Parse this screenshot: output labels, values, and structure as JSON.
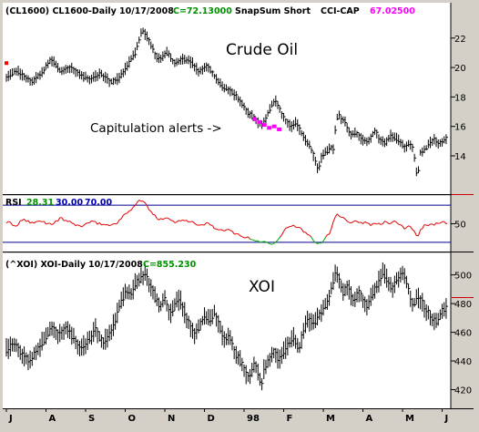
{
  "chart_data": [
    {
      "type": "bar",
      "header": {
        "symbol": "(CL1600) CL1600-Daily",
        "date": "10/17/2008",
        "close": "C=72.13000",
        "study": "SnapSum Short",
        "cci_label": "CCI-CAP",
        "cci_value": "67.02500"
      },
      "title": "Crude Oil",
      "annotation": "Capitulation alerts ->",
      "ylim": [
        11.4,
        24.4
      ],
      "yticks": [
        14,
        16,
        18,
        20,
        22
      ],
      "close_path": [
        [
          0,
          19.3
        ],
        [
          8,
          19.8
        ],
        [
          14,
          19.4
        ],
        [
          20,
          19.0
        ],
        [
          28,
          19.6
        ],
        [
          36,
          20.6
        ],
        [
          44,
          19.7
        ],
        [
          52,
          20.0
        ],
        [
          60,
          19.4
        ],
        [
          68,
          19.2
        ],
        [
          76,
          19.6
        ],
        [
          84,
          19.0
        ],
        [
          90,
          19.2
        ],
        [
          96,
          19.9
        ],
        [
          104,
          21.0
        ],
        [
          110,
          22.6
        ],
        [
          116,
          21.7
        ],
        [
          122,
          20.5
        ],
        [
          130,
          21.0
        ],
        [
          136,
          20.2
        ],
        [
          142,
          20.6
        ],
        [
          150,
          20.3
        ],
        [
          156,
          19.7
        ],
        [
          162,
          20.1
        ],
        [
          168,
          19.4
        ],
        [
          174,
          18.7
        ],
        [
          180,
          18.5
        ],
        [
          186,
          18.0
        ],
        [
          190,
          17.5
        ],
        [
          194,
          17.0
        ],
        [
          198,
          16.7
        ],
        [
          202,
          16.4
        ],
        [
          206,
          16.1
        ],
        [
          210,
          16.6
        ],
        [
          214,
          17.4
        ],
        [
          218,
          17.8
        ],
        [
          222,
          16.9
        ],
        [
          226,
          16.3
        ],
        [
          230,
          16.0
        ],
        [
          234,
          16.3
        ],
        [
          238,
          15.6
        ],
        [
          242,
          15.0
        ],
        [
          246,
          14.5
        ],
        [
          250,
          13.6
        ],
        [
          252,
          12.8
        ],
        [
          254,
          13.9
        ],
        [
          258,
          14.2
        ],
        [
          262,
          14.6
        ],
        [
          264,
          14.5
        ],
        [
          266,
          16.0
        ],
        [
          268,
          17.0
        ],
        [
          270,
          16.6
        ],
        [
          274,
          16.2
        ],
        [
          278,
          15.4
        ],
        [
          282,
          15.6
        ],
        [
          286,
          15.2
        ],
        [
          290,
          15.0
        ],
        [
          294,
          15.2
        ],
        [
          298,
          15.8
        ],
        [
          302,
          15.0
        ],
        [
          306,
          14.9
        ],
        [
          310,
          15.4
        ],
        [
          314,
          15.2
        ],
        [
          318,
          15.0
        ],
        [
          322,
          14.5
        ],
        [
          326,
          14.9
        ],
        [
          328,
          14.6
        ],
        [
          330,
          13.8
        ],
        [
          332,
          12.3
        ],
        [
          334,
          14.2
        ],
        [
          338,
          14.4
        ],
        [
          342,
          14.9
        ],
        [
          346,
          15.1
        ],
        [
          350,
          14.8
        ],
        [
          354,
          15.2
        ]
      ],
      "alerts": [
        [
          200,
          16.5
        ],
        [
          204,
          16.3
        ],
        [
          208,
          16.1
        ],
        [
          212,
          15.9
        ],
        [
          216,
          16.0
        ],
        [
          220,
          15.8
        ]
      ],
      "flag_at": [
        0,
        20.3
      ]
    },
    {
      "type": "line",
      "label": "RSI",
      "current": "28.31",
      "lower": "30.00",
      "upper": "70.00",
      "lower_value": 30,
      "upper_value": 70,
      "ylim": [
        20,
        80
      ],
      "yticks": [
        50
      ],
      "values": [
        [
          0,
          52
        ],
        [
          8,
          48
        ],
        [
          14,
          55
        ],
        [
          20,
          50
        ],
        [
          28,
          53
        ],
        [
          36,
          49
        ],
        [
          44,
          56
        ],
        [
          52,
          51
        ],
        [
          60,
          47
        ],
        [
          68,
          52
        ],
        [
          76,
          50
        ],
        [
          84,
          48
        ],
        [
          90,
          52
        ],
        [
          96,
          60
        ],
        [
          104,
          70
        ],
        [
          108,
          76
        ],
        [
          112,
          72
        ],
        [
          116,
          64
        ],
        [
          122,
          55
        ],
        [
          130,
          57
        ],
        [
          136,
          51
        ],
        [
          142,
          55
        ],
        [
          150,
          52
        ],
        [
          156,
          47
        ],
        [
          162,
          51
        ],
        [
          168,
          46
        ],
        [
          174,
          42
        ],
        [
          180,
          43
        ],
        [
          186,
          39
        ],
        [
          192,
          36
        ],
        [
          198,
          33
        ],
        [
          204,
          31
        ],
        [
          210,
          30
        ],
        [
          216,
          29
        ],
        [
          222,
          38
        ],
        [
          226,
          45
        ],
        [
          230,
          49
        ],
        [
          234,
          46
        ],
        [
          238,
          44
        ],
        [
          242,
          40
        ],
        [
          246,
          36
        ],
        [
          250,
          30
        ],
        [
          254,
          29
        ],
        [
          258,
          36
        ],
        [
          262,
          42
        ],
        [
          266,
          60
        ],
        [
          270,
          58
        ],
        [
          274,
          56
        ],
        [
          278,
          50
        ],
        [
          282,
          55
        ],
        [
          286,
          50
        ],
        [
          290,
          52
        ],
        [
          294,
          49
        ],
        [
          298,
          52
        ],
        [
          302,
          48
        ],
        [
          306,
          53
        ],
        [
          310,
          50
        ],
        [
          314,
          52
        ],
        [
          318,
          48
        ],
        [
          322,
          45
        ],
        [
          326,
          48
        ],
        [
          330,
          42
        ],
        [
          332,
          32
        ],
        [
          334,
          43
        ],
        [
          338,
          48
        ],
        [
          342,
          50
        ],
        [
          346,
          49
        ],
        [
          350,
          52
        ],
        [
          354,
          51
        ]
      ]
    },
    {
      "type": "bar",
      "header": {
        "symbol": "(^XOI) XOI-Daily",
        "date": "10/17/2008",
        "close": "C=855.230"
      },
      "title": "XOI",
      "ylim": [
        407,
        515
      ],
      "yticks": [
        420,
        440,
        460,
        480,
        500
      ],
      "close_path": [
        [
          0,
          448
        ],
        [
          6,
          452
        ],
        [
          12,
          445
        ],
        [
          18,
          440
        ],
        [
          24,
          447
        ],
        [
          30,
          454
        ],
        [
          36,
          463
        ],
        [
          42,
          458
        ],
        [
          48,
          462
        ],
        [
          54,
          456
        ],
        [
          60,
          448
        ],
        [
          66,
          454
        ],
        [
          72,
          462
        ],
        [
          78,
          452
        ],
        [
          84,
          460
        ],
        [
          88,
          468
        ],
        [
          92,
          480
        ],
        [
          96,
          488
        ],
        [
          100,
          486
        ],
        [
          104,
          494
        ],
        [
          108,
          498
        ],
        [
          112,
          500
        ],
        [
          116,
          493
        ],
        [
          120,
          484
        ],
        [
          124,
          477
        ],
        [
          128,
          483
        ],
        [
          132,
          472
        ],
        [
          136,
          479
        ],
        [
          140,
          483
        ],
        [
          144,
          474
        ],
        [
          148,
          464
        ],
        [
          152,
          458
        ],
        [
          156,
          464
        ],
        [
          160,
          471
        ],
        [
          164,
          468
        ],
        [
          168,
          474
        ],
        [
          172,
          465
        ],
        [
          176,
          454
        ],
        [
          180,
          457
        ],
        [
          184,
          446
        ],
        [
          188,
          441
        ],
        [
          192,
          434
        ],
        [
          196,
          428
        ],
        [
          200,
          438
        ],
        [
          204,
          430
        ],
        [
          206,
          420
        ],
        [
          208,
          435
        ],
        [
          212,
          441
        ],
        [
          216,
          446
        ],
        [
          220,
          441
        ],
        [
          224,
          447
        ],
        [
          228,
          452
        ],
        [
          232,
          457
        ],
        [
          236,
          447
        ],
        [
          240,
          462
        ],
        [
          244,
          469
        ],
        [
          248,
          465
        ],
        [
          252,
          472
        ],
        [
          256,
          476
        ],
        [
          260,
          484
        ],
        [
          264,
          494
        ],
        [
          266,
          504
        ],
        [
          268,
          498
        ],
        [
          272,
          488
        ],
        [
          276,
          492
        ],
        [
          280,
          482
        ],
        [
          284,
          489
        ],
        [
          288,
          483
        ],
        [
          292,
          478
        ],
        [
          296,
          488
        ],
        [
          300,
          494
        ],
        [
          304,
          502
        ],
        [
          308,
          496
        ],
        [
          312,
          490
        ],
        [
          316,
          498
        ],
        [
          320,
          503
        ],
        [
          324,
          493
        ],
        [
          328,
          478
        ],
        [
          332,
          485
        ],
        [
          336,
          480
        ],
        [
          340,
          474
        ],
        [
          344,
          470
        ],
        [
          348,
          467
        ],
        [
          352,
          476
        ]
      ]
    }
  ],
  "x_axis": {
    "labels": [
      "J",
      "A",
      "S",
      "O",
      "N",
      "D",
      "98",
      "F",
      "M",
      "A",
      "M",
      "J"
    ],
    "positions": [
      0,
      32,
      64,
      96,
      128,
      160,
      192,
      224,
      256,
      288,
      320,
      352
    ],
    "range": [
      0,
      356
    ]
  },
  "colors": {
    "background": "#ffffff",
    "frame": "#d4d0c8",
    "price_bars": "#000000",
    "alerts": "#ff00ff",
    "rsi_line": "#e00000",
    "rsi_oversold": "#00b000",
    "rsi_levels": "#00008b",
    "close_value": "#009000",
    "cci_value": "#ff00ff",
    "rsi_current": "#009000",
    "rsi_lower": "#0000b4",
    "rsi_upper": "#0000b4",
    "axis_line": "#cc0000"
  }
}
